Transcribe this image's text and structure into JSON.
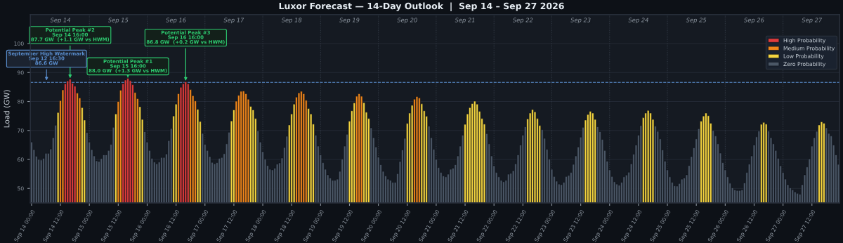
{
  "chart_data": {
    "type": "bar",
    "title": "Luxor Forecast — 14-Day Outlook  |  Sep 14 – Sep 27 2026",
    "ylabel": "Load (GW)",
    "series": [
      {
        "name": "High Probability",
        "color": "#e03c3c",
        "x": [
          "2026-09-14T14:00",
          "2026-09-14T15:00",
          "2026-09-14T16:00",
          "2026-09-14T17:00",
          "2026-09-14T18:00",
          "2026-09-15T14:00",
          "2026-09-15T15:00",
          "2026-09-15T16:00",
          "2026-09-15T17:00",
          "2026-09-15T18:00",
          "2026-09-16T14:00",
          "2026-09-16T15:00",
          "2026-09-16T16:00",
          "2026-09-16T17:00"
        ],
        "values": [
          86.1,
          87.1,
          87.7,
          86.3,
          85.3,
          86.1,
          87.4,
          88.0,
          87.2,
          85.8,
          84.9,
          86.1,
          86.8,
          86.1
        ]
      },
      {
        "name": "Medium Probability",
        "color": "#f0861a",
        "x": [
          "2026-09-14T12:00",
          "2026-09-14T13:00",
          "2026-09-14T19:00",
          "2026-09-14T20:00",
          "2026-09-15T12:00",
          "2026-09-15T13:00",
          "2026-09-15T19:00",
          "2026-09-15T20:00",
          "2026-09-16T13:00",
          "2026-09-16T18:00",
          "2026-09-16T19:00",
          "2026-09-16T20:00",
          "2026-09-17T13:00",
          "2026-09-17T14:00",
          "2026-09-17T15:00",
          "2026-09-17T16:00",
          "2026-09-17T17:00",
          "2026-09-17T18:00",
          "2026-09-18T14:00",
          "2026-09-18T15:00",
          "2026-09-18T16:00",
          "2026-09-18T17:00",
          "2026-09-18T18:00",
          "2026-09-19T15:00",
          "2026-09-19T16:00",
          "2026-09-19T17:00",
          "2026-09-20T15:00",
          "2026-09-20T16:00",
          "2026-09-20T17:00"
        ],
        "values": [
          80.3,
          84.0,
          82.9,
          81.2,
          80.0,
          83.9,
          83.1,
          81.0,
          82.7,
          84.1,
          82.0,
          80.2,
          80.1,
          82.1,
          83.5,
          83.6,
          82.7,
          80.8,
          81.5,
          83.0,
          83.5,
          82.7,
          80.4,
          81.8,
          82.7,
          81.8,
          80.8,
          81.7,
          81.2
        ]
      },
      {
        "name": "Low Probability",
        "color": "#f5d53f",
        "x": [
          "2026-09-14T11:00",
          "2026-09-14T21:00",
          "2026-09-14T22:00",
          "2026-09-15T11:00",
          "2026-09-15T21:00",
          "2026-09-15T22:00",
          "2026-09-16T11:00",
          "2026-09-16T12:00",
          "2026-09-16T21:00",
          "2026-09-16T22:00",
          "2026-09-17T11:00",
          "2026-09-17T12:00",
          "2026-09-17T19:00",
          "2026-09-17T20:00",
          "2026-09-17T21:00",
          "2026-09-18T11:00",
          "2026-09-18T12:00",
          "2026-09-18T13:00",
          "2026-09-18T19:00",
          "2026-09-18T20:00",
          "2026-09-18T21:00",
          "2026-09-19T12:00",
          "2026-09-19T13:00",
          "2026-09-19T14:00",
          "2026-09-19T18:00",
          "2026-09-19T19:00",
          "2026-09-19T20:00",
          "2026-09-20T12:00",
          "2026-09-20T13:00",
          "2026-09-20T14:00",
          "2026-09-20T18:00",
          "2026-09-20T19:00",
          "2026-09-20T20:00",
          "2026-09-21T12:00",
          "2026-09-21T13:00",
          "2026-09-21T14:00",
          "2026-09-21T15:00",
          "2026-09-21T16:00",
          "2026-09-21T17:00",
          "2026-09-21T18:00",
          "2026-09-21T19:00",
          "2026-09-21T20:00",
          "2026-09-22T14:00",
          "2026-09-22T15:00",
          "2026-09-22T16:00",
          "2026-09-22T17:00",
          "2026-09-22T18:00",
          "2026-09-22T19:00",
          "2026-09-23T14:00",
          "2026-09-23T15:00",
          "2026-09-23T16:00",
          "2026-09-23T17:00",
          "2026-09-23T18:00",
          "2026-09-24T14:00",
          "2026-09-24T15:00",
          "2026-09-24T16:00",
          "2026-09-24T17:00",
          "2026-09-24T18:00",
          "2026-09-25T14:00",
          "2026-09-25T15:00",
          "2026-09-25T16:00",
          "2026-09-25T17:00",
          "2026-09-25T18:00",
          "2026-09-26T15:00",
          "2026-09-26T16:00",
          "2026-09-26T17:00",
          "2026-09-27T15:00",
          "2026-09-27T16:00",
          "2026-09-27T17:00"
        ],
        "values": [
          76.2,
          77.9,
          73.6,
          75.7,
          78.2,
          73.8,
          75.0,
          79.1,
          77.3,
          73.1,
          73.3,
          77.1,
          78.3,
          77.1,
          74.1,
          71.9,
          75.7,
          79.1,
          77.6,
          75.7,
          72.2,
          73.2,
          76.8,
          79.5,
          79.6,
          76.3,
          74.1,
          72.4,
          76.0,
          78.7,
          79.2,
          76.8,
          74.9,
          72.1,
          75.7,
          77.9,
          79.3,
          80.1,
          79.1,
          76.6,
          74.1,
          72.2,
          74.0,
          76.0,
          77.2,
          76.4,
          74.1,
          71.7,
          73.6,
          75.5,
          76.6,
          76.0,
          73.8,
          74.4,
          76.0,
          76.9,
          76.0,
          73.8,
          73.2,
          75.0,
          76.0,
          75.1,
          72.5,
          72.1,
          72.8,
          72.2,
          71.9,
          73.0,
          72.5
        ]
      },
      {
        "name": "Zero Probability",
        "color": "#4b5766",
        "x": [
          "2026-09-14T00:00",
          "2026-09-14T01:00",
          "2026-09-14T02:00",
          "2026-09-14T03:00",
          "2026-09-14T04:00",
          "2026-09-14T05:00",
          "2026-09-14T06:00",
          "2026-09-14T07:00",
          "2026-09-14T08:00",
          "2026-09-14T09:00",
          "2026-09-14T10:00",
          "2026-09-14T23:00",
          "2026-09-15T00:00",
          "2026-09-15T01:00",
          "2026-09-15T02:00",
          "2026-09-15T03:00",
          "2026-09-15T04:00",
          "2026-09-15T05:00",
          "2026-09-15T06:00",
          "2026-09-15T07:00",
          "2026-09-15T08:00",
          "2026-09-15T09:00",
          "2026-09-15T10:00",
          "2026-09-15T23:00",
          "2026-09-16T00:00",
          "2026-09-16T01:00",
          "2026-09-16T02:00",
          "2026-09-16T03:00",
          "2026-09-16T04:00",
          "2026-09-16T05:00",
          "2026-09-16T06:00",
          "2026-09-16T07:00",
          "2026-09-16T08:00",
          "2026-09-16T09:00",
          "2026-09-16T10:00",
          "2026-09-16T23:00",
          "2026-09-17T00:00",
          "2026-09-17T01:00",
          "2026-09-17T02:00",
          "2026-09-17T03:00",
          "2026-09-17T04:00",
          "2026-09-17T05:00",
          "2026-09-17T06:00",
          "2026-09-17T07:00",
          "2026-09-17T08:00",
          "2026-09-17T09:00",
          "2026-09-17T10:00",
          "2026-09-17T22:00",
          "2026-09-17T23:00",
          "2026-09-18T00:00",
          "2026-09-18T01:00",
          "2026-09-18T02:00",
          "2026-09-18T03:00",
          "2026-09-18T04:00",
          "2026-09-18T05:00",
          "2026-09-18T06:00",
          "2026-09-18T07:00",
          "2026-09-18T08:00",
          "2026-09-18T09:00",
          "2026-09-18T10:00",
          "2026-09-18T22:00",
          "2026-09-18T23:00",
          "2026-09-19T00:00",
          "2026-09-19T01:00",
          "2026-09-19T02:00",
          "2026-09-19T03:00",
          "2026-09-19T04:00",
          "2026-09-19T05:00",
          "2026-09-19T06:00",
          "2026-09-19T07:00",
          "2026-09-19T08:00",
          "2026-09-19T09:00",
          "2026-09-19T10:00",
          "2026-09-19T11:00",
          "2026-09-19T21:00",
          "2026-09-19T22:00",
          "2026-09-19T23:00",
          "2026-09-20T00:00",
          "2026-09-20T01:00",
          "2026-09-20T02:00",
          "2026-09-20T03:00",
          "2026-09-20T04:00",
          "2026-09-20T05:00",
          "2026-09-20T06:00",
          "2026-09-20T07:00",
          "2026-09-20T08:00",
          "2026-09-20T09:00",
          "2026-09-20T10:00",
          "2026-09-20T11:00",
          "2026-09-20T21:00",
          "2026-09-20T22:00",
          "2026-09-20T23:00",
          "2026-09-21T00:00",
          "2026-09-21T01:00",
          "2026-09-21T02:00",
          "2026-09-21T03:00",
          "2026-09-21T04:00",
          "2026-09-21T05:00",
          "2026-09-21T06:00",
          "2026-09-21T07:00",
          "2026-09-21T08:00",
          "2026-09-21T09:00",
          "2026-09-21T10:00",
          "2026-09-21T11:00",
          "2026-09-21T21:00",
          "2026-09-21T22:00",
          "2026-09-21T23:00",
          "2026-09-22T00:00",
          "2026-09-22T01:00",
          "2026-09-22T02:00",
          "2026-09-22T03:00",
          "2026-09-22T04:00",
          "2026-09-22T05:00",
          "2026-09-22T06:00",
          "2026-09-22T07:00",
          "2026-09-22T08:00",
          "2026-09-22T09:00",
          "2026-09-22T10:00",
          "2026-09-22T11:00",
          "2026-09-22T12:00",
          "2026-09-22T13:00",
          "2026-09-22T20:00",
          "2026-09-22T21:00",
          "2026-09-22T22:00",
          "2026-09-22T23:00",
          "2026-09-23T00:00",
          "2026-09-23T01:00",
          "2026-09-23T02:00",
          "2026-09-23T03:00",
          "2026-09-23T04:00",
          "2026-09-23T05:00",
          "2026-09-23T06:00",
          "2026-09-23T07:00",
          "2026-09-23T08:00",
          "2026-09-23T09:00",
          "2026-09-23T10:00",
          "2026-09-23T11:00",
          "2026-09-23T12:00",
          "2026-09-23T13:00",
          "2026-09-23T19:00",
          "2026-09-23T20:00",
          "2026-09-23T21:00",
          "2026-09-23T22:00",
          "2026-09-23T23:00",
          "2026-09-24T00:00",
          "2026-09-24T01:00",
          "2026-09-24T02:00",
          "2026-09-24T03:00",
          "2026-09-24T04:00",
          "2026-09-24T05:00",
          "2026-09-24T06:00",
          "2026-09-24T07:00",
          "2026-09-24T08:00",
          "2026-09-24T09:00",
          "2026-09-24T10:00",
          "2026-09-24T11:00",
          "2026-09-24T12:00",
          "2026-09-24T13:00",
          "2026-09-24T19:00",
          "2026-09-24T20:00",
          "2026-09-24T21:00",
          "2026-09-24T22:00",
          "2026-09-24T23:00",
          "2026-09-25T00:00",
          "2026-09-25T01:00",
          "2026-09-25T02:00",
          "2026-09-25T03:00",
          "2026-09-25T04:00",
          "2026-09-25T05:00",
          "2026-09-25T06:00",
          "2026-09-25T07:00",
          "2026-09-25T08:00",
          "2026-09-25T09:00",
          "2026-09-25T10:00",
          "2026-09-25T11:00",
          "2026-09-25T12:00",
          "2026-09-25T13:00",
          "2026-09-25T19:00",
          "2026-09-25T20:00",
          "2026-09-25T21:00",
          "2026-09-25T22:00",
          "2026-09-25T23:00",
          "2026-09-26T00:00",
          "2026-09-26T01:00",
          "2026-09-26T02:00",
          "2026-09-26T03:00",
          "2026-09-26T04:00",
          "2026-09-26T05:00",
          "2026-09-26T06:00",
          "2026-09-26T07:00",
          "2026-09-26T08:00",
          "2026-09-26T09:00",
          "2026-09-26T10:00",
          "2026-09-26T11:00",
          "2026-09-26T12:00",
          "2026-09-26T13:00",
          "2026-09-26T14:00",
          "2026-09-26T18:00",
          "2026-09-26T19:00",
          "2026-09-26T20:00",
          "2026-09-26T21:00",
          "2026-09-26T22:00",
          "2026-09-26T23:00",
          "2026-09-27T00:00",
          "2026-09-27T01:00",
          "2026-09-27T02:00",
          "2026-09-27T03:00",
          "2026-09-27T04:00",
          "2026-09-27T05:00",
          "2026-09-27T06:00",
          "2026-09-27T07:00",
          "2026-09-27T08:00",
          "2026-09-27T09:00",
          "2026-09-27T10:00",
          "2026-09-27T11:00",
          "2026-09-27T12:00",
          "2026-09-27T13:00",
          "2026-09-27T14:00",
          "2026-09-27T18:00",
          "2026-09-27T19:00",
          "2026-09-27T20:00",
          "2026-09-27T21:00",
          "2026-09-27T22:00",
          "2026-09-27T23:00"
        ],
        "values": [
          66.0,
          63.4,
          61.1,
          60.0,
          59.8,
          60.4,
          62.1,
          62.1,
          63.6,
          67.5,
          71.8,
          69.3,
          66.0,
          63.4,
          61.2,
          59.5,
          59.3,
          60.3,
          61.6,
          61.6,
          63.1,
          65.2,
          71.1,
          69.6,
          66.0,
          63.1,
          60.4,
          59.1,
          58.5,
          59.1,
          60.7,
          60.7,
          61.9,
          66.5,
          70.7,
          69.0,
          65.2,
          63.1,
          61.0,
          59.0,
          58.5,
          58.9,
          60.4,
          60.7,
          62.0,
          65.4,
          69.4,
          69.9,
          66.0,
          62.7,
          60.1,
          57.9,
          56.6,
          56.4,
          57.0,
          58.4,
          58.8,
          60.5,
          64.1,
          68.0,
          68.4,
          64.6,
          61.6,
          58.9,
          56.6,
          54.7,
          53.6,
          52.8,
          52.8,
          53.2,
          55.9,
          60.1,
          64.6,
          68.7,
          70.9,
          67.5,
          64.3,
          60.8,
          58.2,
          55.9,
          54.3,
          53.2,
          52.8,
          52.1,
          52.1,
          55.1,
          59.3,
          63.3,
          67.3,
          71.5,
          67.5,
          63.5,
          60.0,
          57.2,
          55.5,
          54.3,
          54.0,
          54.9,
          56.6,
          57.0,
          58.2,
          61.2,
          64.6,
          68.4,
          68.9,
          65.4,
          61.2,
          57.8,
          55.5,
          54.0,
          52.8,
          52.3,
          52.8,
          54.9,
          55.2,
          56.1,
          58.5,
          61.6,
          65.0,
          68.4,
          71.3,
          70.3,
          67.3,
          63.5,
          60.1,
          56.6,
          54.1,
          52.5,
          51.5,
          51.3,
          52.1,
          54.1,
          54.5,
          55.5,
          58.3,
          61.2,
          64.3,
          67.7,
          71.1,
          71.3,
          69.6,
          66.9,
          63.1,
          59.4,
          56.4,
          54.1,
          52.3,
          51.5,
          51.1,
          52.1,
          54.0,
          54.6,
          55.6,
          58.5,
          61.8,
          65.0,
          68.4,
          71.7,
          71.5,
          69.7,
          67.1,
          63.3,
          59.4,
          56.4,
          54.0,
          52.1,
          50.9,
          50.8,
          51.7,
          53.2,
          53.6,
          54.7,
          57.9,
          61.0,
          64.0,
          67.1,
          70.6,
          70.0,
          68.1,
          65.4,
          62.2,
          58.9,
          56.4,
          54.0,
          51.8,
          50.2,
          49.5,
          49.3,
          49.3,
          49.5,
          51.9,
          55.5,
          58.4,
          61.2,
          65.0,
          67.8,
          69.8,
          69.8,
          67.5,
          65.4,
          63.1,
          60.4,
          57.8,
          55.5,
          53.2,
          51.3,
          50.2,
          49.5,
          48.8,
          48.3,
          48.0,
          51.3,
          54.7,
          57.4,
          60.2,
          64.6,
          67.5,
          69.7,
          70.9,
          69.0,
          68.1,
          65.0,
          61.6,
          58.3
        ]
      }
    ],
    "xlim": [
      "2026-09-13T23:30",
      "2026-09-27T23:30"
    ],
    "xticks": [
      {
        "value": "2026-09-14T00:00",
        "label": "Sep 14 00:00"
      },
      {
        "value": "2026-09-14T12:00",
        "label": "Sep 14 12:00"
      },
      {
        "value": "2026-09-15T00:00",
        "label": "Sep 15 00:00"
      },
      {
        "value": "2026-09-15T12:00",
        "label": "Sep 15 12:00"
      },
      {
        "value": "2026-09-16T00:00",
        "label": "Sep 16 00:00"
      },
      {
        "value": "2026-09-16T12:00",
        "label": "Sep 16 12:00"
      },
      {
        "value": "2026-09-17T00:00",
        "label": "Sep 17 00:00"
      },
      {
        "value": "2026-09-17T12:00",
        "label": "Sep 17 12:00"
      },
      {
        "value": "2026-09-18T00:00",
        "label": "Sep 18 00:00"
      },
      {
        "value": "2026-09-18T12:00",
        "label": "Sep 18 12:00"
      },
      {
        "value": "2026-09-19T00:00",
        "label": "Sep 19 00:00"
      },
      {
        "value": "2026-09-19T12:00",
        "label": "Sep 19 12:00"
      },
      {
        "value": "2026-09-20T00:00",
        "label": "Sep 20 00:00"
      },
      {
        "value": "2026-09-20T12:00",
        "label": "Sep 20 12:00"
      },
      {
        "value": "2026-09-21T00:00",
        "label": "Sep 21 00:00"
      },
      {
        "value": "2026-09-21T12:00",
        "label": "Sep 21 12:00"
      },
      {
        "value": "2026-09-22T00:00",
        "label": "Sep 22 00:00"
      },
      {
        "value": "2026-09-22T12:00",
        "label": "Sep 22 12:00"
      },
      {
        "value": "2026-09-23T00:00",
        "label": "Sep 23 00:00"
      },
      {
        "value": "2026-09-23T12:00",
        "label": "Sep 23 12:00"
      },
      {
        "value": "2026-09-24T00:00",
        "label": "Sep 24 00:00"
      },
      {
        "value": "2026-09-24T12:00",
        "label": "Sep 24 12:00"
      },
      {
        "value": "2026-09-25T00:00",
        "label": "Sep 25 00:00"
      },
      {
        "value": "2026-09-25T12:00",
        "label": "Sep 25 12:00"
      },
      {
        "value": "2026-09-26T00:00",
        "label": "Sep 26 00:00"
      },
      {
        "value": "2026-09-26T12:00",
        "label": "Sep 26 12:00"
      },
      {
        "value": "2026-09-27T00:00",
        "label": "Sep 27 00:00"
      },
      {
        "value": "2026-09-27T12:00",
        "label": "Sep 27 12:00"
      }
    ],
    "x2lim": [
      "2026-09-13T23:30",
      "2026-09-27T23:30"
    ],
    "x2ticks": [
      {
        "value": "2026-09-14T12:00",
        "label": "Sep 14"
      },
      {
        "value": "2026-09-15T12:00",
        "label": "Sep 15"
      },
      {
        "value": "2026-09-16T12:00",
        "label": "Sep 16"
      },
      {
        "value": "2026-09-17T12:00",
        "label": "Sep 17"
      },
      {
        "value": "2026-09-18T12:00",
        "label": "Sep 18"
      },
      {
        "value": "2026-09-19T12:00",
        "label": "Sep 19"
      },
      {
        "value": "2026-09-20T12:00",
        "label": "Sep 20"
      },
      {
        "value": "2026-09-21T12:00",
        "label": "Sep 21"
      },
      {
        "value": "2026-09-22T12:00",
        "label": "Sep 22"
      },
      {
        "value": "2026-09-23T12:00",
        "label": "Sep 23"
      },
      {
        "value": "2026-09-24T12:00",
        "label": "Sep 24"
      },
      {
        "value": "2026-09-25T12:00",
        "label": "Sep 25"
      },
      {
        "value": "2026-09-26T12:00",
        "label": "Sep 26"
      },
      {
        "value": "2026-09-27T12:00",
        "label": "Sep 27"
      }
    ],
    "ylim": [
      45,
      110
    ],
    "yticks": [
      50,
      60,
      70,
      80,
      90,
      100
    ],
    "grid": "y",
    "legend": "upper right",
    "ref_lines": [
      {
        "axis": "y",
        "value": 86.6,
        "label": "September High Watermark\nSep 12 16:30\n86.6 GW",
        "color": "#5b8fd0",
        "line_style": "dashed"
      },
      {
        "axis": "x",
        "value": "2026-09-15T00:00",
        "color": "#39414d",
        "line_style": "dotted"
      },
      {
        "axis": "x",
        "value": "2026-09-16T00:00",
        "color": "#39414d",
        "line_style": "dotted"
      },
      {
        "axis": "x",
        "value": "2026-09-17T00:00",
        "color": "#39414d",
        "line_style": "dotted"
      },
      {
        "axis": "x",
        "value": "2026-09-18T00:00",
        "color": "#39414d",
        "line_style": "dotted"
      },
      {
        "axis": "x",
        "value": "2026-09-19T00:00",
        "color": "#39414d",
        "line_style": "dotted"
      },
      {
        "axis": "x",
        "value": "2026-09-20T00:00",
        "color": "#39414d",
        "line_style": "dotted"
      },
      {
        "axis": "x",
        "value": "2026-09-21T00:00",
        "color": "#39414d",
        "line_style": "dotted"
      },
      {
        "axis": "x",
        "value": "2026-09-22T00:00",
        "color": "#39414d",
        "line_style": "dotted"
      },
      {
        "axis": "x",
        "value": "2026-09-23T00:00",
        "color": "#39414d",
        "line_style": "dotted"
      },
      {
        "axis": "x",
        "value": "2026-09-24T00:00",
        "color": "#39414d",
        "line_style": "dotted"
      },
      {
        "axis": "x",
        "value": "2026-09-25T00:00",
        "color": "#39414d",
        "line_style": "dotted"
      },
      {
        "axis": "x",
        "value": "2026-09-26T00:00",
        "color": "#39414d",
        "line_style": "dotted"
      },
      {
        "axis": "x",
        "value": "2026-09-27T00:00",
        "color": "#39414d",
        "line_style": "dotted"
      }
    ],
    "annotations": [
      {
        "text": "Potential Peak #2\nSep 14 16:00\n87.7 GW  (+1.1 GW vs HWM)",
        "x": "2026-09-14T16:00",
        "y": 87.7
      },
      {
        "text": "Potential Peak #1\nSep 15 16:00\n88.0 GW  (+1.3 GW vs HWM)",
        "x": "2026-09-15T16:00",
        "y": 88.0
      },
      {
        "text": "Potential Peak #3\nSep 16 16:00\n86.8 GW  (+0.2 GW vs HWM)",
        "x": "2026-09-16T16:00",
        "y": 86.8
      }
    ]
  }
}
